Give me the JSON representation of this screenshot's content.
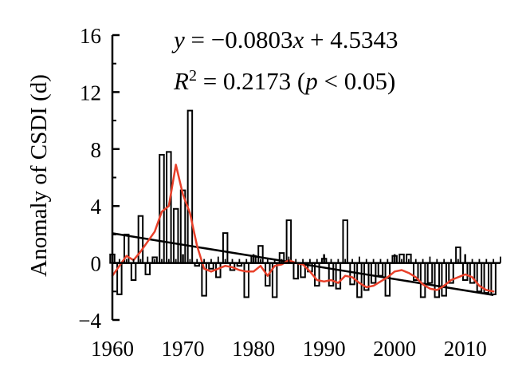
{
  "chart_data": {
    "type": "bar",
    "ylabel": "Anomaly of CSDI (d)",
    "xlim": [
      1960,
      2015
    ],
    "ylim": [
      -4,
      16
    ],
    "x_ticks": [
      "1960",
      "1970",
      "1980",
      "1990",
      "2000",
      "2010"
    ],
    "y_ticks": [
      "−4",
      "0",
      "4",
      "8",
      "12",
      "16"
    ],
    "annotations": {
      "equation": {
        "prefix": "y",
        "body": " = −0.0803",
        "var": "x",
        "tail": " + 4.5343"
      },
      "r2": {
        "r": "R",
        "sup": "2",
        "val": " = 0.2173 (",
        "p": "p",
        "rest": " < 0.05)"
      }
    },
    "series": [
      {
        "type": "bar",
        "x": [
          1960,
          1961,
          1962,
          1963,
          1964,
          1965,
          1966,
          1967,
          1968,
          1969,
          1970,
          1971,
          1972,
          1973,
          1974,
          1975,
          1976,
          1977,
          1978,
          1979,
          1980,
          1981,
          1982,
          1983,
          1984,
          1985,
          1986,
          1987,
          1988,
          1989,
          1990,
          1991,
          1992,
          1993,
          1994,
          1995,
          1996,
          1997,
          1998,
          1999,
          2000,
          2001,
          2002,
          2003,
          2004,
          2005,
          2006,
          2007,
          2008,
          2009,
          2010,
          2011,
          2012,
          2013,
          2014
        ],
        "values": [
          0.6,
          -2.2,
          2.0,
          -1.2,
          3.3,
          -0.8,
          0.4,
          7.6,
          7.8,
          3.8,
          5.1,
          10.7,
          -0.2,
          -2.3,
          -0.4,
          -1.0,
          2.1,
          -0.5,
          -0.2,
          -2.4,
          0.5,
          1.2,
          -1.6,
          -2.4,
          0.7,
          3.0,
          -1.1,
          -1.0,
          -0.6,
          -1.6,
          0.3,
          -1.6,
          -1.8,
          3.0,
          -1.5,
          -2.4,
          -1.9,
          -1.4,
          -0.9,
          -2.3,
          0.5,
          0.6,
          0.6,
          -1.2,
          -2.4,
          -1.4,
          -2.4,
          -2.3,
          -1.4,
          1.1,
          -1.2,
          -1.4,
          -2.0,
          -2.1,
          -2.2
        ]
      },
      {
        "type": "line",
        "color": "#e8402a",
        "x": [
          1960,
          1961,
          1962,
          1963,
          1964,
          1965,
          1966,
          1967,
          1968,
          1969,
          1970,
          1971,
          1972,
          1973,
          1974,
          1975,
          1976,
          1977,
          1978,
          1979,
          1980,
          1981,
          1982,
          1983,
          1984,
          1985,
          1986,
          1987,
          1988,
          1989,
          1990,
          1991,
          1992,
          1993,
          1994,
          1995,
          1996,
          1997,
          1998,
          1999,
          2000,
          2001,
          2002,
          2003,
          2004,
          2005,
          2006,
          2007,
          2008,
          2009,
          2010,
          2011,
          2012,
          2013,
          2014
        ],
        "values": [
          -0.9,
          -0.2,
          0.5,
          0.2,
          0.8,
          1.5,
          2.2,
          3.6,
          4.0,
          6.9,
          4.8,
          3.5,
          1.2,
          -0.4,
          -0.6,
          -0.4,
          -0.2,
          -0.3,
          -0.5,
          -0.6,
          -0.6,
          -0.2,
          -0.9,
          -0.2,
          -0.1,
          0.2,
          0.0,
          -0.1,
          -0.6,
          -1.2,
          -1.3,
          -1.2,
          -1.4,
          -0.9,
          -1.0,
          -1.4,
          -1.7,
          -1.6,
          -1.3,
          -1.0,
          -0.6,
          -0.5,
          -0.7,
          -1.0,
          -1.5,
          -1.8,
          -1.9,
          -1.6,
          -1.2,
          -1.0,
          -0.8,
          -1.0,
          -1.6,
          -1.9,
          -2.0
        ]
      },
      {
        "type": "trend",
        "color": "#000000",
        "slope": -0.0803,
        "intercept": 4.5343,
        "x_start": 1960,
        "x_end": 2014
      }
    ]
  }
}
